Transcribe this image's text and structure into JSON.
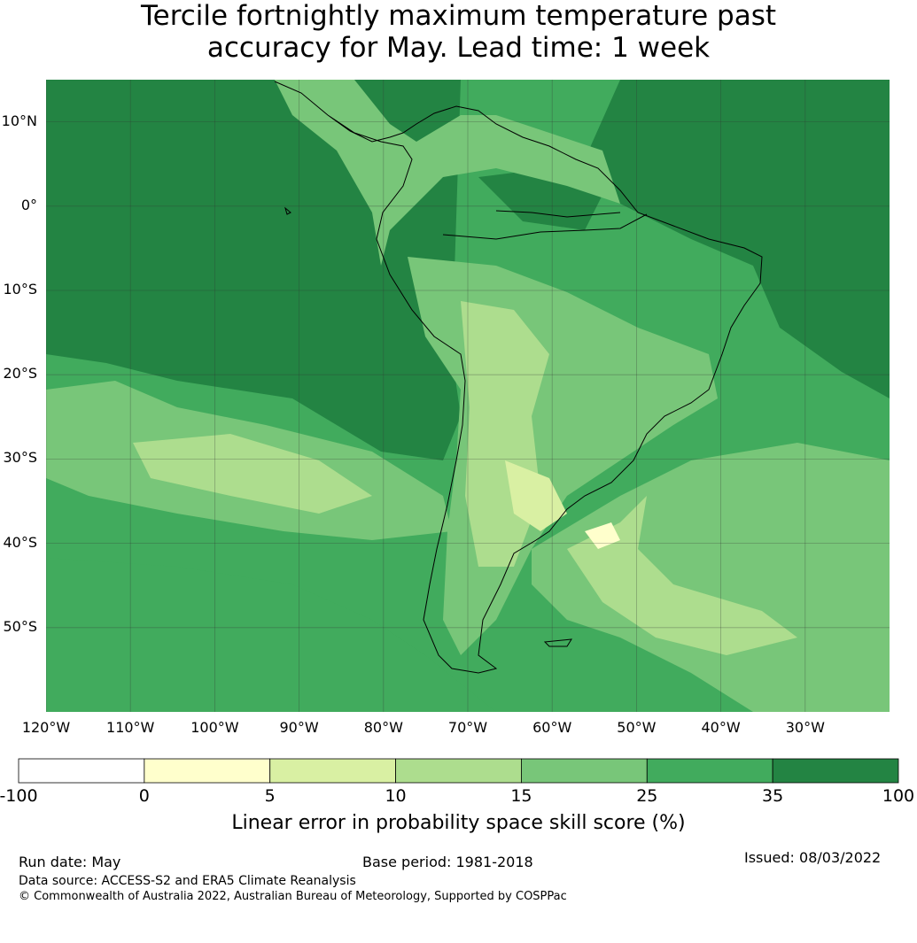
{
  "title_line1": "Tercile fortnightly maximum temperature past",
  "title_line2": "accuracy for May. Lead time: 1 week",
  "map": {
    "lon_range": [
      -120,
      -20
    ],
    "lat_range": [
      -60,
      15
    ],
    "lat_ticks": [
      {
        "value": 10,
        "label": "10°N"
      },
      {
        "value": 0,
        "label": "0°"
      },
      {
        "value": -10,
        "label": "10°S"
      },
      {
        "value": -20,
        "label": "20°S"
      },
      {
        "value": -30,
        "label": "30°S"
      },
      {
        "value": -40,
        "label": "40°S"
      },
      {
        "value": -50,
        "label": "50°S"
      }
    ],
    "lon_ticks": [
      {
        "value": -120,
        "label": "120°W"
      },
      {
        "value": -110,
        "label": "110°W"
      },
      {
        "value": -100,
        "label": "100°W"
      },
      {
        "value": -90,
        "label": "90°W"
      },
      {
        "value": -80,
        "label": "80°W"
      },
      {
        "value": -70,
        "label": "70°W"
      },
      {
        "value": -60,
        "label": "60°W"
      },
      {
        "value": -50,
        "label": "50°W"
      },
      {
        "value": -40,
        "label": "40°W"
      },
      {
        "value": -30,
        "label": "30°W"
      }
    ]
  },
  "colorbar": {
    "label": "Linear error in probability space skill score (%)",
    "ticks": [
      "-100",
      "0",
      "5",
      "10",
      "15",
      "25",
      "35",
      "100"
    ],
    "colors": [
      "#ffffff",
      "#ffffcc",
      "#d9f0a3",
      "#addd8e",
      "#78c679",
      "#41ab5d",
      "#238443"
    ]
  },
  "footer": {
    "run_date": "Run date: May",
    "base_period": "Base period: 1981-2018",
    "issued": "Issued: 08/03/2022",
    "data_source": "Data source: ACCESS-S2 and ERA5 Climate Reanalysis",
    "copyright": "© Commonwealth of Australia 2022, Australian Bureau of Meteorology, Supported by COSPPac"
  }
}
